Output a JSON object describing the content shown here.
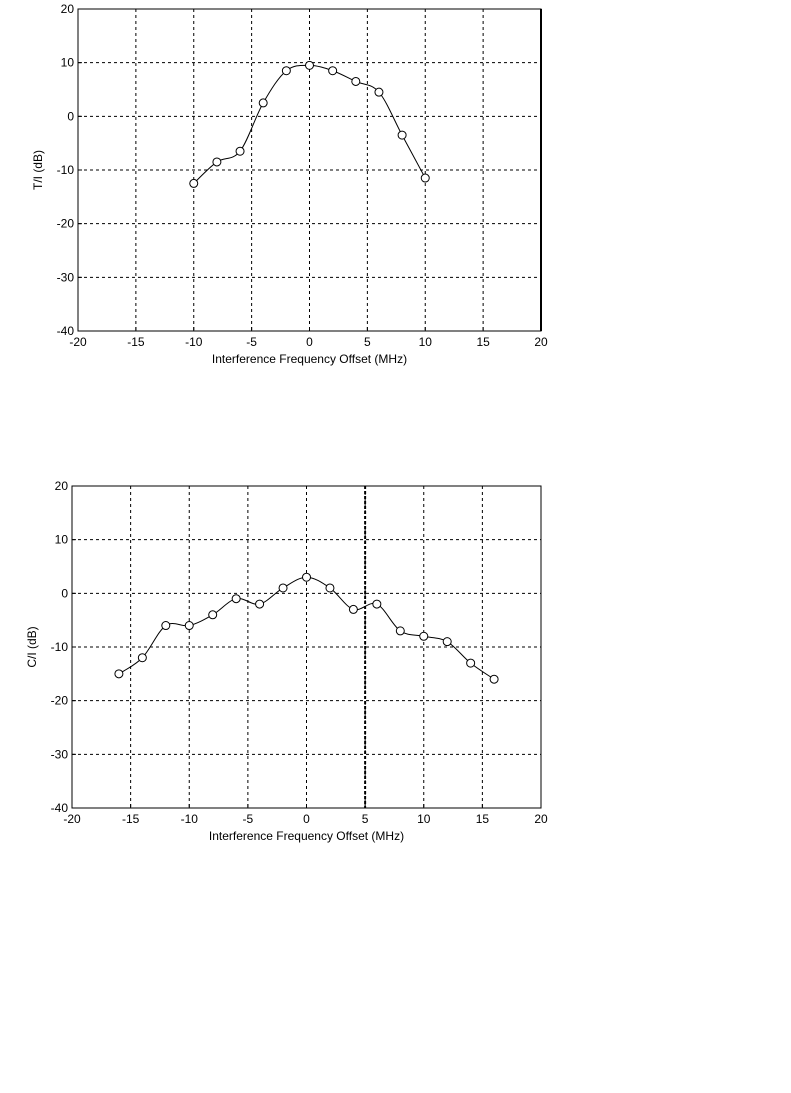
{
  "chart_data": [
    {
      "type": "line",
      "title": "",
      "xlabel": "Interference Frequency Offset (MHz)",
      "ylabel": "T/I (dB)",
      "xlim": [
        -20,
        20
      ],
      "ylim": [
        -40,
        20
      ],
      "xticks": [
        -20,
        -15,
        -10,
        -5,
        0,
        5,
        10,
        15,
        20
      ],
      "yticks": [
        20,
        10,
        0,
        -10,
        -20,
        -30,
        -40
      ],
      "grid": true,
      "marker": "circle",
      "series": [
        {
          "x": [
            -10,
            -8,
            -6,
            -4,
            -2,
            0,
            2,
            4,
            6,
            8,
            10
          ],
          "y": [
            -12.5,
            -8.5,
            -6.5,
            2.5,
            8.5,
            9.5,
            8.5,
            6.5,
            4.5,
            -3.5,
            -11.5
          ]
        }
      ]
    },
    {
      "type": "line",
      "title": "",
      "xlabel": "Interference Frequency Offset (MHz)",
      "ylabel": "C/I (dB)",
      "xlim": [
        -20,
        20
      ],
      "ylim": [
        -40,
        20
      ],
      "xticks": [
        -20,
        -15,
        -10,
        -5,
        0,
        5,
        10,
        15,
        20
      ],
      "yticks": [
        20,
        10,
        0,
        -10,
        -20,
        -30,
        -40
      ],
      "grid": true,
      "marker": "circle",
      "vline_x": 5,
      "series": [
        {
          "x": [
            -16,
            -14,
            -12,
            -10,
            -8,
            -6,
            -4,
            -2,
            0,
            2,
            4,
            6,
            8,
            10,
            12,
            14,
            16
          ],
          "y": [
            -15,
            -12,
            -6,
            -6,
            -4,
            -1,
            -2,
            1,
            3,
            1,
            -3,
            -2,
            -7,
            -8,
            -9,
            -13,
            -16
          ]
        }
      ]
    }
  ]
}
